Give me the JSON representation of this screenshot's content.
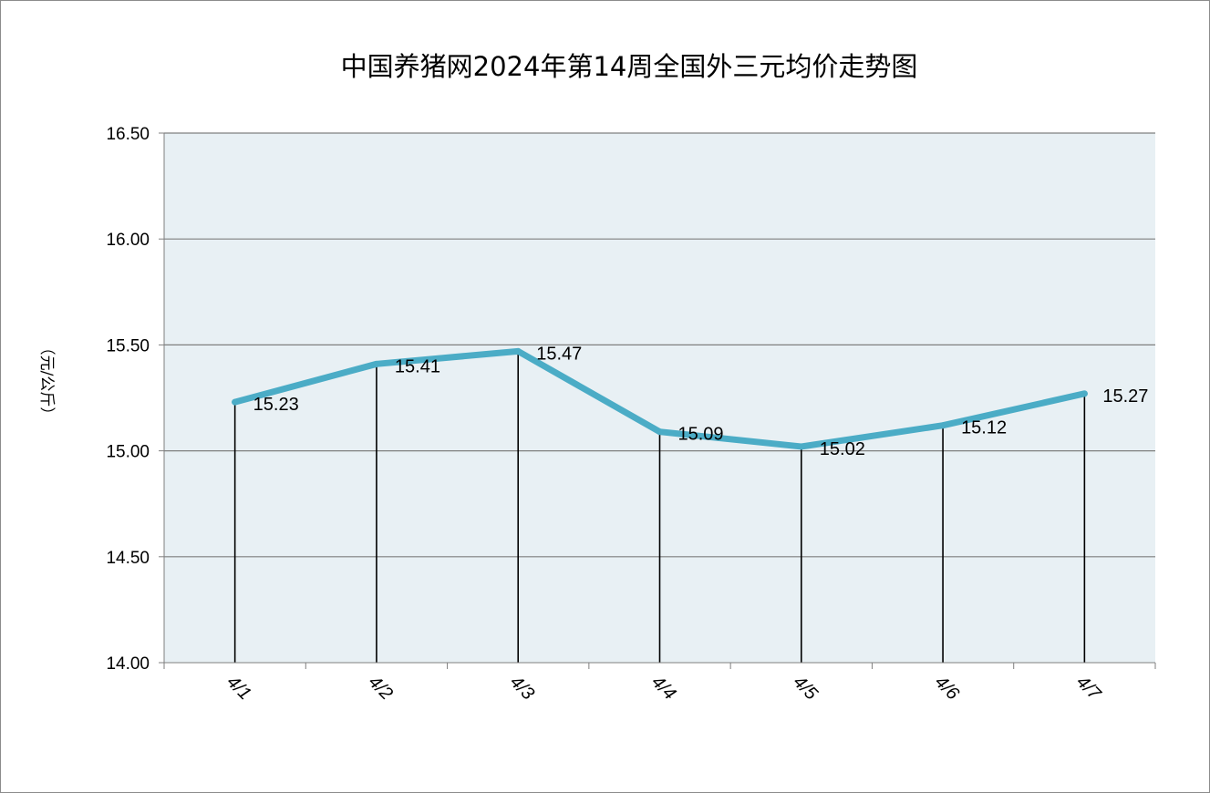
{
  "chart_data": {
    "type": "line",
    "title": "中国养猪网2024年第14周全国外三元均价走势图",
    "ylabel": "（元/公斤）",
    "xlabel": "",
    "categories": [
      "4/1",
      "4/2",
      "4/3",
      "4/4",
      "4/5",
      "4/6",
      "4/7"
    ],
    "series": [
      {
        "values": [
          15.23,
          15.41,
          15.47,
          15.09,
          15.02,
          15.12,
          15.27
        ]
      }
    ],
    "data_labels": [
      "15.23",
      "15.41",
      "15.47",
      "15.09",
      "15.02",
      "15.12",
      "15.27"
    ],
    "ylim": [
      14.0,
      16.5
    ],
    "yticks": [
      "14.00",
      "14.50",
      "15.00",
      "15.50",
      "16.00",
      "16.50"
    ],
    "grid": true,
    "drop_lines": true,
    "colors": {
      "line": "#4bacc6",
      "plot_bg": "#e8f0f4",
      "grid": "#7f7f7f"
    }
  }
}
